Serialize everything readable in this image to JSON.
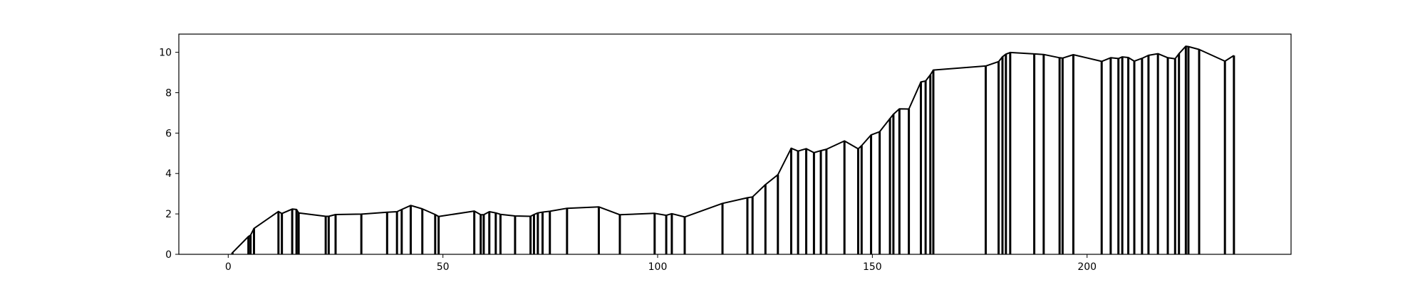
{
  "chart_data": {
    "type": "line",
    "title": "",
    "xlabel": "",
    "ylabel": "",
    "xlim": [
      -11.5,
      247.5
    ],
    "ylim": [
      0,
      10.9
    ],
    "xticks": [
      0,
      50,
      100,
      150,
      200
    ],
    "yticks": [
      0,
      2,
      4,
      6,
      8,
      10
    ],
    "grid": false,
    "legend": "none",
    "colors": {
      "line": "#000000",
      "axes": "#000000",
      "background": "#ffffff"
    },
    "series": [
      {
        "x": [
          0.8,
          1.0,
          4.7,
          5.2,
          6.0,
          11.7,
          12.5,
          14.9,
          15.9,
          16.4,
          22.7,
          23.4,
          25.0,
          31.0,
          37.0,
          39.3,
          40.4,
          42.5,
          45.2,
          48.2,
          49.0,
          57.3,
          58.8,
          59.5,
          60.8,
          62.3,
          63.4,
          66.8,
          70.4,
          71.2,
          72.1,
          73.2,
          74.9,
          78.9,
          86.3,
          91.2,
          99.3,
          102.0,
          103.3,
          106.3,
          115.1,
          120.9,
          122.1,
          125.1,
          128.0,
          131.1,
          132.7,
          134.6,
          136.4,
          138.0,
          139.3,
          143.5,
          146.7,
          147.5,
          149.7,
          151.7,
          154.1,
          154.9,
          156.3,
          158.5,
          161.3,
          162.4,
          163.5,
          164.2,
          176.4,
          179.4,
          180.3,
          181.1,
          182.1,
          187.7,
          189.9,
          193.6,
          194.3,
          196.8,
          203.4,
          205.5,
          207.3,
          208.2,
          209.6,
          211.0,
          212.8,
          214.3,
          216.5,
          218.8,
          220.5,
          221.4,
          223.0,
          223.6,
          226.1,
          232.1,
          234.2
        ],
        "y": [
          0.02,
          0.08,
          0.88,
          0.95,
          1.28,
          2.12,
          2.02,
          2.24,
          2.22,
          2.05,
          1.88,
          1.88,
          1.97,
          1.99,
          2.08,
          2.11,
          2.22,
          2.42,
          2.25,
          1.97,
          1.87,
          2.14,
          1.96,
          1.96,
          2.11,
          2.05,
          1.98,
          1.9,
          1.88,
          1.97,
          2.05,
          2.09,
          2.13,
          2.28,
          2.35,
          1.96,
          2.03,
          1.93,
          2.01,
          1.85,
          2.52,
          2.8,
          2.84,
          3.45,
          3.94,
          5.25,
          5.11,
          5.23,
          5.03,
          5.13,
          5.2,
          5.61,
          5.22,
          5.38,
          5.91,
          6.07,
          6.72,
          6.93,
          7.2,
          7.19,
          8.53,
          8.58,
          8.88,
          9.12,
          9.32,
          9.54,
          9.78,
          9.91,
          9.99,
          9.92,
          9.89,
          9.73,
          9.71,
          9.88,
          9.55,
          9.73,
          9.69,
          9.77,
          9.74,
          9.56,
          9.7,
          9.85,
          9.93,
          9.73,
          9.68,
          9.93,
          10.3,
          10.28,
          10.14,
          9.56,
          9.84
        ]
      }
    ]
  }
}
